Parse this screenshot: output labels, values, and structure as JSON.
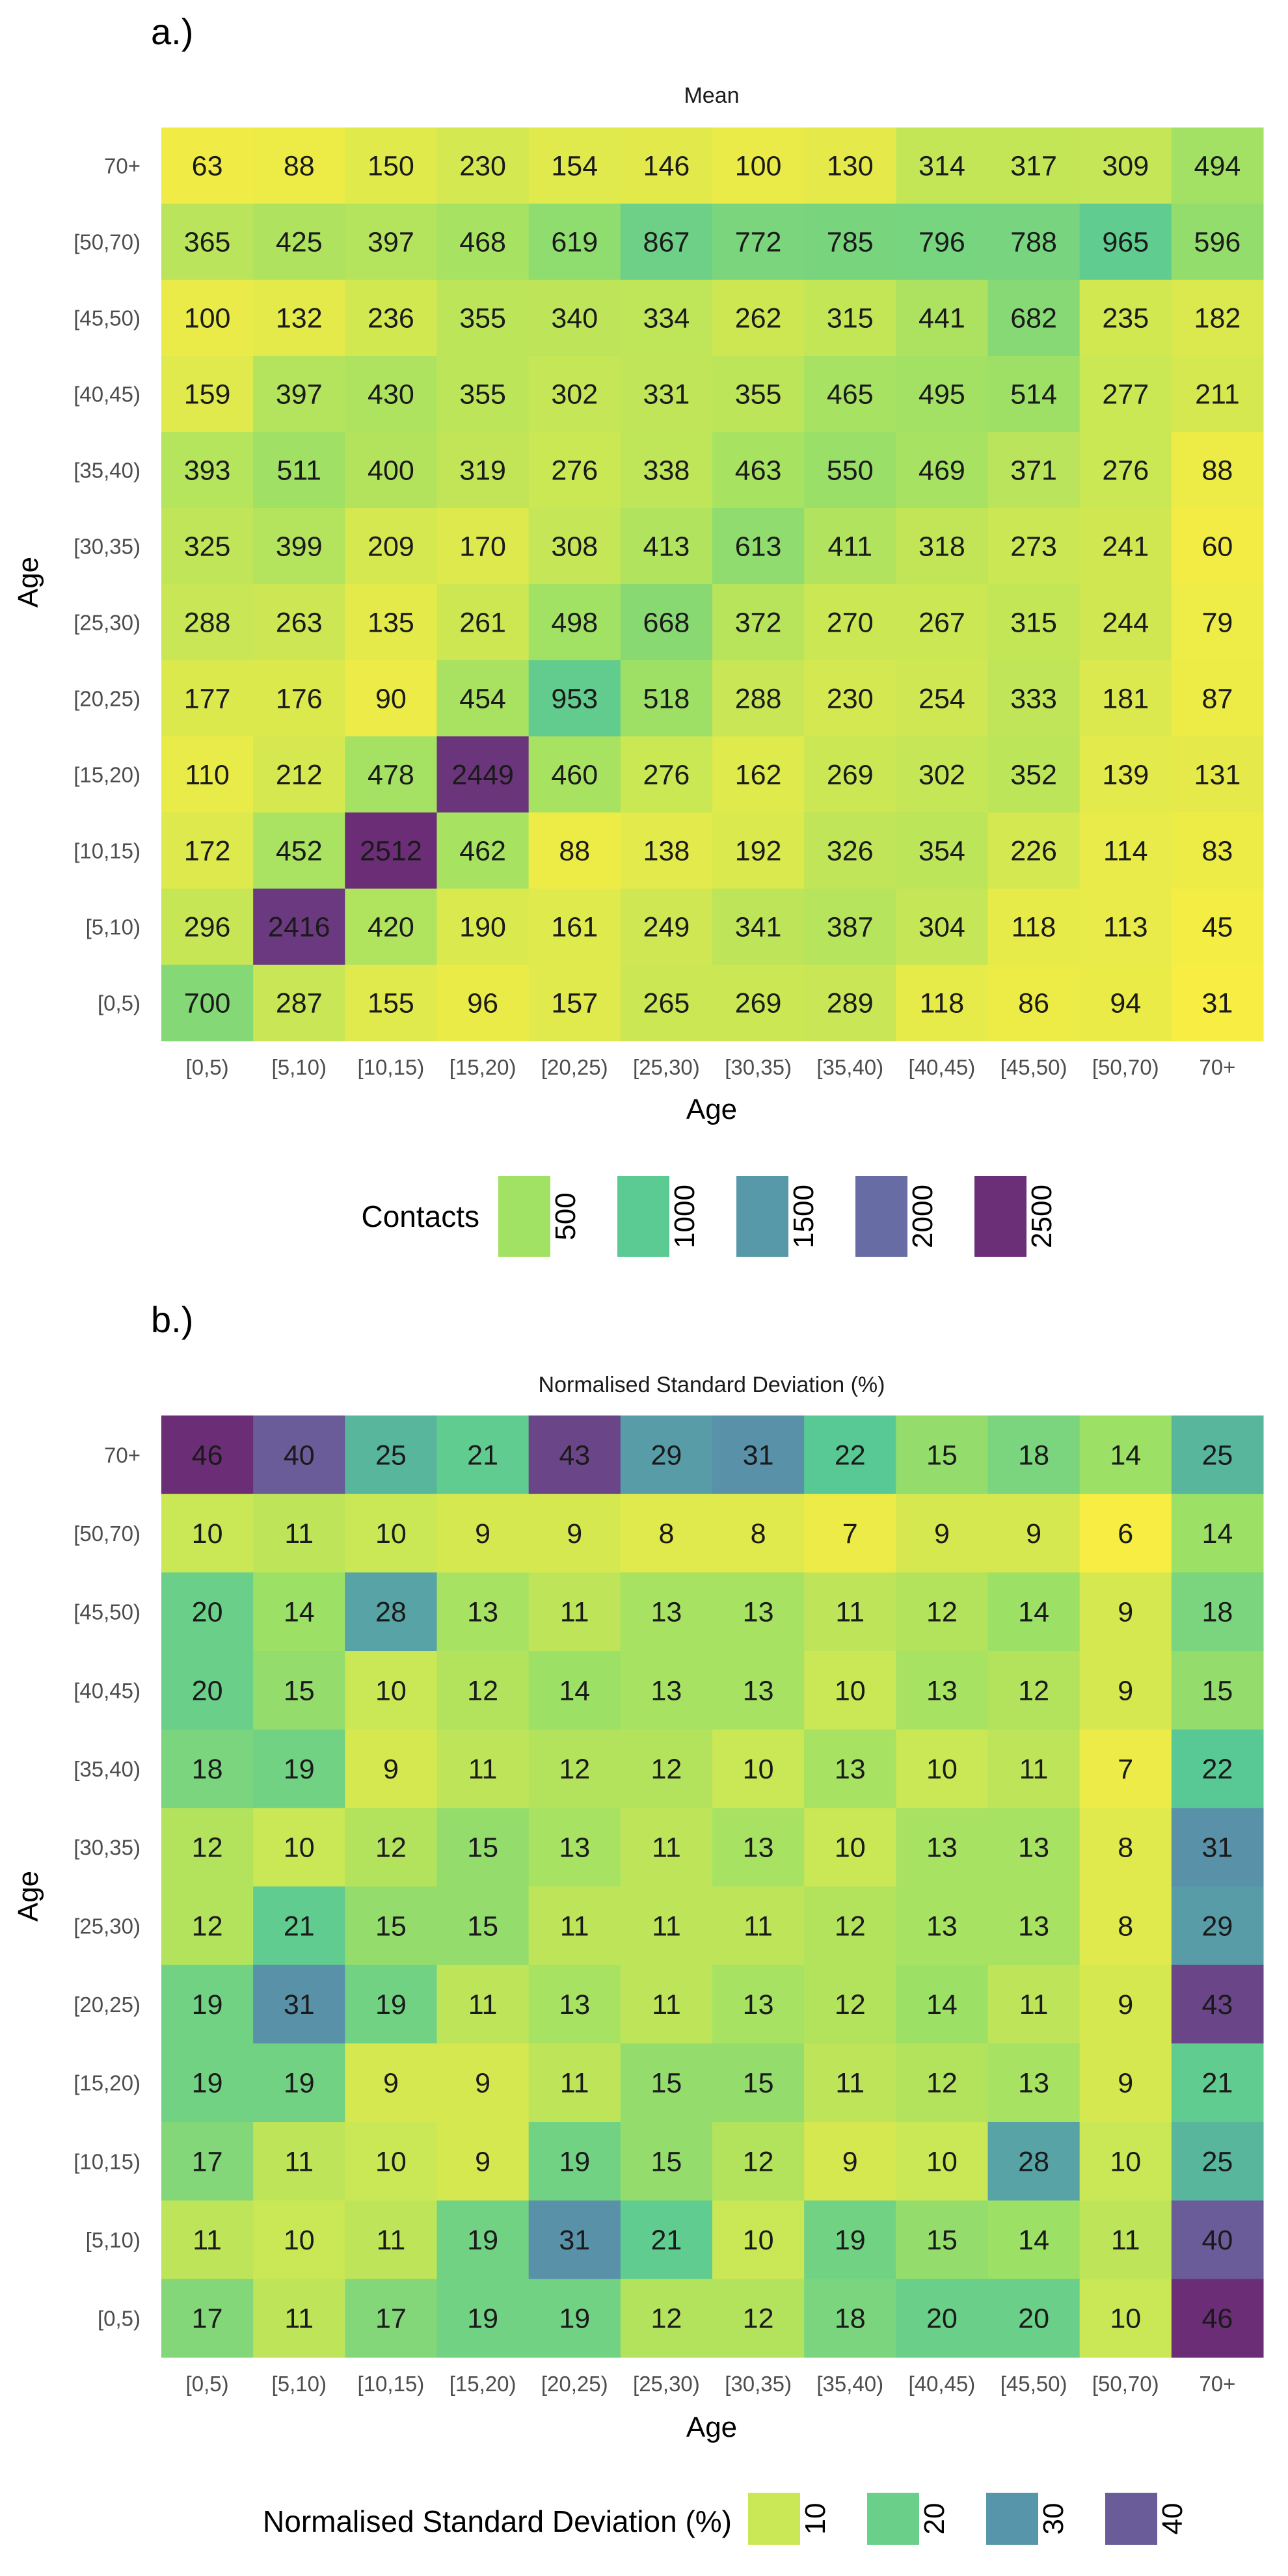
{
  "chart_data": [
    {
      "type": "heatmap",
      "panel_label": "a.)",
      "title": "Mean",
      "xlabel": "Age",
      "ylabel": "Age",
      "x_categories": [
        "[0,5)",
        "[5,10)",
        "[10,15)",
        "[15,20)",
        "[20,25)",
        "[25,30)",
        "[30,35)",
        "[35,40)",
        "[40,45)",
        "[45,50)",
        "[50,70)",
        "70+"
      ],
      "y_categories_top_to_bottom": [
        "70+",
        "[50,70)",
        "[45,50)",
        "[40,45)",
        "[35,40)",
        "[30,35)",
        "[25,30)",
        "[20,25)",
        "[15,20)",
        "[10,15)",
        "[5,10)",
        "[0,5)"
      ],
      "values": [
        [
          63,
          88,
          150,
          230,
          154,
          146,
          100,
          130,
          314,
          317,
          309,
          494
        ],
        [
          365,
          425,
          397,
          468,
          619,
          867,
          772,
          785,
          796,
          788,
          965,
          596
        ],
        [
          100,
          132,
          236,
          355,
          340,
          334,
          262,
          315,
          441,
          682,
          235,
          182
        ],
        [
          159,
          397,
          430,
          355,
          302,
          331,
          355,
          465,
          495,
          514,
          277,
          211
        ],
        [
          393,
          511,
          400,
          319,
          276,
          338,
          463,
          550,
          469,
          371,
          276,
          88
        ],
        [
          325,
          399,
          209,
          170,
          308,
          413,
          613,
          411,
          318,
          273,
          241,
          60
        ],
        [
          288,
          263,
          135,
          261,
          498,
          668,
          372,
          270,
          267,
          315,
          244,
          79
        ],
        [
          177,
          176,
          90,
          454,
          953,
          518,
          288,
          230,
          254,
          333,
          181,
          87
        ],
        [
          110,
          212,
          478,
          2449,
          460,
          276,
          162,
          269,
          302,
          352,
          139,
          131
        ],
        [
          172,
          452,
          2512,
          462,
          88,
          138,
          192,
          326,
          354,
          226,
          114,
          83
        ],
        [
          296,
          2416,
          420,
          190,
          161,
          249,
          341,
          387,
          304,
          118,
          113,
          45
        ],
        [
          700,
          287,
          155,
          96,
          157,
          265,
          269,
          289,
          118,
          86,
          94,
          31
        ]
      ],
      "color_range": [
        31,
        2512
      ],
      "legend": {
        "title": "Contacts",
        "ticks": [
          500,
          1000,
          1500,
          2000,
          2500
        ],
        "position": "bottom"
      },
      "colorscale": "viridis (reversed, alpha 0.8)"
    },
    {
      "type": "heatmap",
      "panel_label": "b.)",
      "title": "Normalised Standard Deviation (%)",
      "xlabel": "Age",
      "ylabel": "Age",
      "x_categories": [
        "[0,5)",
        "[5,10)",
        "[10,15)",
        "[15,20)",
        "[20,25)",
        "[25,30)",
        "[30,35)",
        "[35,40)",
        "[40,45)",
        "[45,50)",
        "[50,70)",
        "70+"
      ],
      "y_categories_top_to_bottom": [
        "70+",
        "[50,70)",
        "[45,50)",
        "[40,45)",
        "[35,40)",
        "[30,35)",
        "[25,30)",
        "[20,25)",
        "[15,20)",
        "[10,15)",
        "[5,10)",
        "[0,5)"
      ],
      "values": [
        [
          46,
          40,
          25,
          21,
          43,
          29,
          31,
          22,
          15,
          18,
          14,
          25
        ],
        [
          10,
          11,
          10,
          9,
          9,
          8,
          8,
          7,
          9,
          9,
          6,
          14
        ],
        [
          20,
          14,
          28,
          13,
          11,
          13,
          13,
          11,
          12,
          14,
          9,
          18
        ],
        [
          20,
          15,
          10,
          12,
          14,
          13,
          13,
          10,
          13,
          12,
          9,
          15
        ],
        [
          18,
          19,
          9,
          11,
          12,
          12,
          10,
          13,
          10,
          11,
          7,
          22
        ],
        [
          12,
          10,
          12,
          15,
          13,
          11,
          13,
          10,
          13,
          13,
          8,
          31
        ],
        [
          12,
          21,
          15,
          15,
          11,
          11,
          11,
          12,
          13,
          13,
          8,
          29
        ],
        [
          19,
          31,
          19,
          11,
          13,
          11,
          13,
          12,
          14,
          11,
          9,
          43
        ],
        [
          19,
          19,
          9,
          9,
          11,
          15,
          15,
          11,
          12,
          13,
          9,
          21
        ],
        [
          17,
          11,
          10,
          9,
          19,
          15,
          12,
          9,
          10,
          28,
          10,
          25
        ],
        [
          11,
          10,
          11,
          19,
          31,
          21,
          10,
          19,
          15,
          14,
          11,
          40
        ],
        [
          17,
          11,
          17,
          19,
          19,
          12,
          12,
          18,
          20,
          20,
          10,
          46
        ]
      ],
      "color_range": [
        6,
        46
      ],
      "legend": {
        "title": "Normalised Standard Deviation (%)",
        "ticks": [
          10,
          20,
          30,
          40
        ],
        "position": "bottom"
      },
      "colorscale": "viridis (reversed, alpha 0.8)"
    }
  ]
}
